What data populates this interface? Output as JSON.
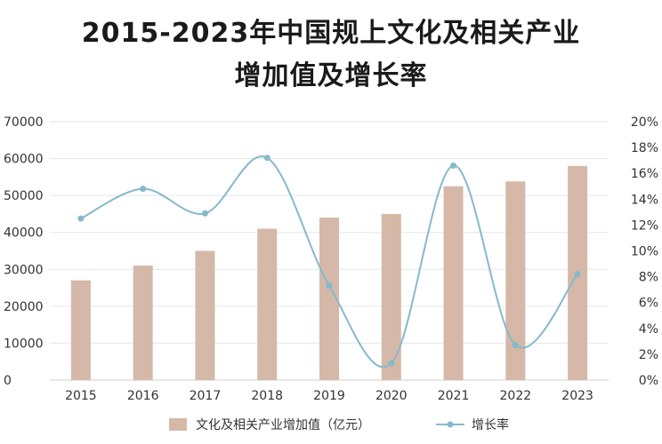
{
  "title_line1": "2015-2023年中国规上文化及相关产业",
  "title_line2": "增加值及增长率",
  "chart_data": {
    "type": "bar",
    "categories": [
      "2015",
      "2016",
      "2017",
      "2018",
      "2019",
      "2020",
      "2021",
      "2022",
      "2023"
    ],
    "series": [
      {
        "name": "文化及相关产业增加值（亿元）",
        "type": "bar",
        "axis": "left",
        "color": "#d5b8a8",
        "values": [
          27000,
          31000,
          35000,
          41000,
          44000,
          45000,
          52500,
          53800,
          58000
        ]
      },
      {
        "name": "增长率",
        "type": "line",
        "axis": "right",
        "color": "#86b9cc",
        "smooth": true,
        "values": [
          12.5,
          14.8,
          12.9,
          17.2,
          7.3,
          1.3,
          16.6,
          2.7,
          8.2
        ]
      }
    ],
    "y_left": {
      "min": 0,
      "max": 70000,
      "ticks": [
        "0",
        "10000",
        "20000",
        "30000",
        "40000",
        "50000",
        "60000",
        "70000"
      ]
    },
    "y_right": {
      "min": 0,
      "max": 20,
      "ticks": [
        "0%",
        "2%",
        "4%",
        "6%",
        "8%",
        "10%",
        "12%",
        "14%",
        "16%",
        "18%",
        "20%"
      ]
    },
    "grid": "horizontal",
    "legend_position": "bottom"
  }
}
